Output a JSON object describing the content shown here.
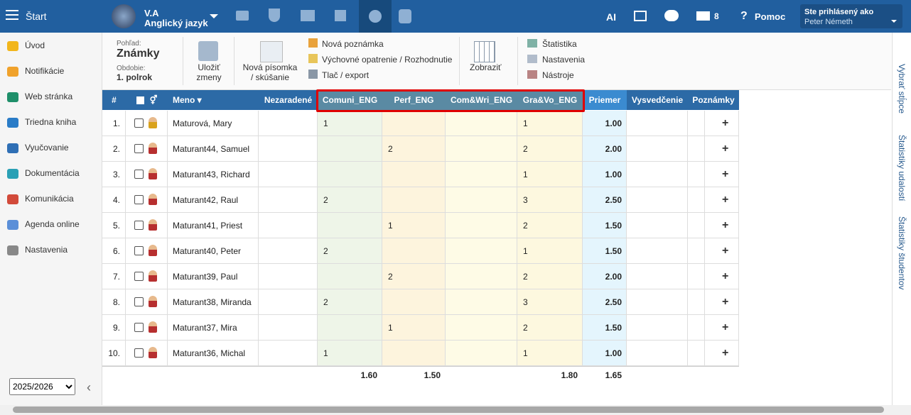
{
  "topbar": {
    "start": "Štart",
    "class_name": "V.A",
    "subject": "Anglický jazyk",
    "ai": "AI",
    "mail_count": "8",
    "help": "Pomoc",
    "logged_in_label": "Ste prihlásený ako",
    "user": "Peter Németh"
  },
  "sidebar": {
    "items": [
      "Úvod",
      "Notifikácie",
      "Web stránka",
      "Triedna kniha",
      "Vyučovanie",
      "Dokumentácia",
      "Komunikácia",
      "Agenda online",
      "Nastavenia"
    ],
    "year": "2025/2026"
  },
  "toolbar": {
    "view_label": "Pohľad:",
    "view": "Známky",
    "period_label": "Obdobie:",
    "period": "1. polrok",
    "save": "Uložiť zmeny",
    "new_test": "Nová písomka / skúšanie",
    "new_note": "Nová poznámka",
    "measure": "Výchovné opatrenie / Rozhodnutie",
    "print": "Tlač / export",
    "show": "Zobraziť",
    "stats": "Štatistika",
    "settings": "Nastavenia",
    "tools": "Nástroje"
  },
  "right_tabs": [
    "Vybrať stĺpce",
    "Štatistiky udalostí",
    "Štatistiky študentov"
  ],
  "table": {
    "columns": {
      "number": "#",
      "name": "Meno",
      "unassigned": "Nezaradené",
      "grades": [
        "Comuni_ENG",
        "Perf_ENG",
        "Com&Wri_ENG",
        "Gra&Vo_ENG"
      ],
      "average": "Priemer",
      "report": "Vysvedčenie",
      "notes": "Poznámky"
    },
    "rows": [
      {
        "number": "1.",
        "name": "Maturová, Mary",
        "grades": [
          1,
          null,
          null,
          1
        ],
        "average": "1.00"
      },
      {
        "number": "2.",
        "name": "Maturant44, Samuel",
        "grades": [
          null,
          2,
          null,
          2
        ],
        "average": "2.00"
      },
      {
        "number": "3.",
        "name": "Maturant43, Richard",
        "grades": [
          null,
          null,
          null,
          1
        ],
        "average": "1.00"
      },
      {
        "number": "4.",
        "name": "Maturant42, Raul",
        "grades": [
          2,
          null,
          null,
          3
        ],
        "average": "2.50"
      },
      {
        "number": "5.",
        "name": "Maturant41, Priest",
        "grades": [
          null,
          1,
          null,
          2
        ],
        "average": "1.50"
      },
      {
        "number": "6.",
        "name": "Maturant40, Peter",
        "grades": [
          2,
          null,
          null,
          1
        ],
        "average": "1.50"
      },
      {
        "number": "7.",
        "name": "Maturant39, Paul",
        "grades": [
          null,
          2,
          null,
          2
        ],
        "average": "2.00"
      },
      {
        "number": "8.",
        "name": "Maturant38, Miranda",
        "grades": [
          2,
          null,
          null,
          3
        ],
        "average": "2.50"
      },
      {
        "number": "9.",
        "name": "Maturant37, Mira",
        "grades": [
          null,
          1,
          null,
          2
        ],
        "average": "1.50"
      },
      {
        "number": "10.",
        "name": "Maturant36, Michal",
        "grades": [
          1,
          null,
          null,
          1
        ],
        "average": "1.00"
      }
    ],
    "footer": {
      "grades": [
        "1.60",
        "1.50",
        null,
        "1.80"
      ],
      "average": "1.65"
    }
  }
}
